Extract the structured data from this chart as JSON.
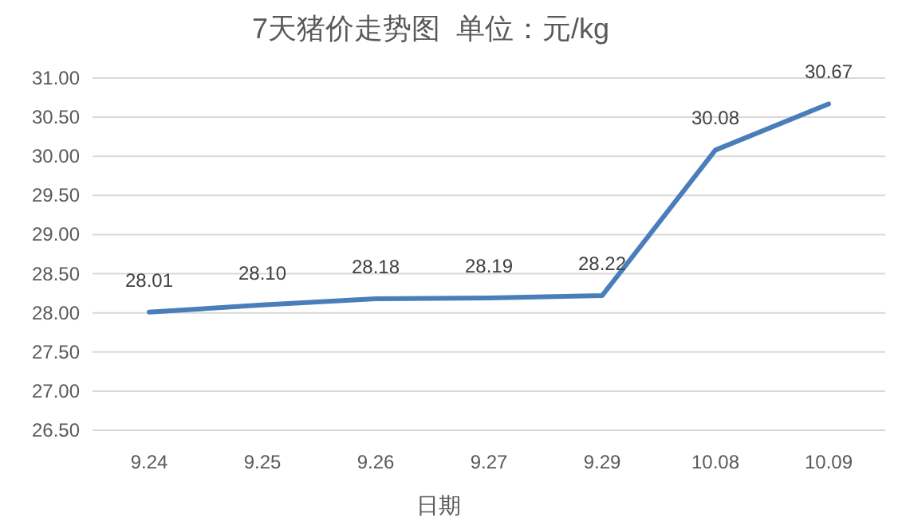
{
  "chart_data": {
    "type": "line",
    "title": "7天猪价走势图  单位：元/kg",
    "xlabel": "日期",
    "categories": [
      "9.24",
      "9.25",
      "9.26",
      "9.27",
      "9.29",
      "10.08",
      "10.09"
    ],
    "series": [
      {
        "color": "#4a7ebb",
        "values": [
          28.01,
          28.1,
          28.18,
          28.19,
          28.22,
          30.08,
          30.67
        ]
      }
    ],
    "ylim": [
      26.5,
      31
    ],
    "yticks": [
      {
        "value": 26.5,
        "label": "26.50"
      },
      {
        "value": 27,
        "label": "27.00"
      },
      {
        "value": 27.5,
        "label": "27.50"
      },
      {
        "value": 28,
        "label": "28.00"
      },
      {
        "value": 28.5,
        "label": "28.50"
      },
      {
        "value": 29,
        "label": "29.00"
      },
      {
        "value": 29.5,
        "label": "29.50"
      },
      {
        "value": 30,
        "label": "30.00"
      },
      {
        "value": 30.5,
        "label": "30.50"
      },
      {
        "value": 31,
        "label": "31.00"
      }
    ],
    "value_labels": [
      "28.01",
      "28.10",
      "28.18",
      "28.19",
      "28.22",
      "30.08",
      "30.67"
    ],
    "grid": "y",
    "marker": "none",
    "line_style": "solid"
  }
}
